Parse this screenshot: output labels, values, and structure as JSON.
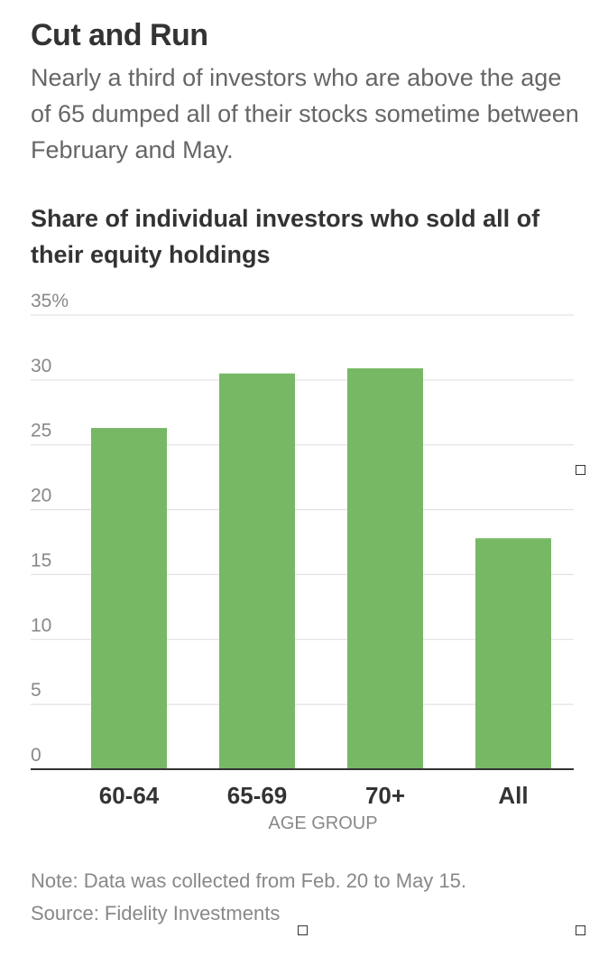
{
  "header": {
    "title": "Cut and Run",
    "subtitle": "Nearly a third of investors who are above the age of 65 dumped all of their stocks sometime between February and May."
  },
  "chart_data": {
    "type": "bar",
    "title": "Share of individual investors who sold all of their equity holdings",
    "categories": [
      "60-64",
      "65-69",
      "70+",
      "All"
    ],
    "values": [
      26.3,
      30.5,
      30.9,
      17.8
    ],
    "xlabel": "AGE GROUP",
    "ylabel": "",
    "ylim": [
      0,
      35
    ],
    "yticks": [
      0,
      5,
      10,
      15,
      20,
      25,
      30,
      35
    ],
    "ytick_labels": [
      "0",
      "5",
      "10",
      "15",
      "20",
      "25",
      "30",
      "35%"
    ],
    "bar_color": "#77b865",
    "grid": true
  },
  "footer": {
    "note": "Note: Data was collected from Feb. 20 to May 15.",
    "source": "Source: Fidelity Investments"
  }
}
